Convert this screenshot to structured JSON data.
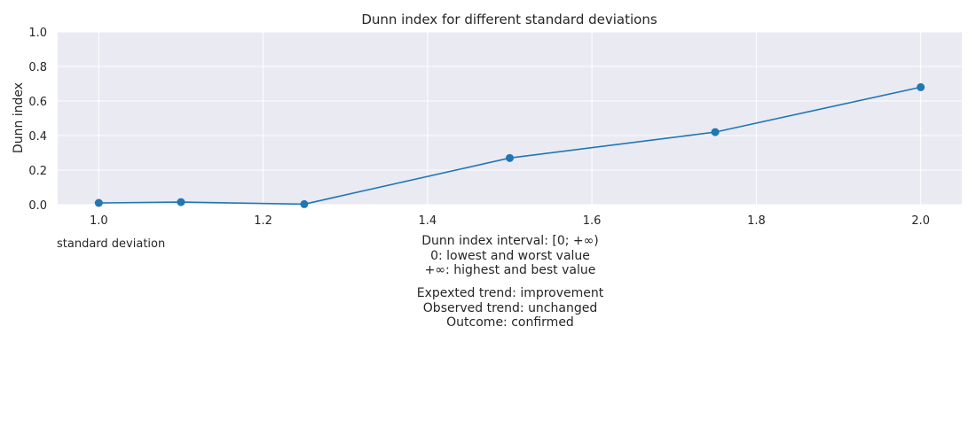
{
  "chart_data": {
    "type": "line",
    "title": "Dunn index for different standard deviations",
    "xlabel": "standard deviation",
    "ylabel": "Dunn index",
    "x": [
      1.0,
      1.1,
      1.25,
      1.5,
      1.75,
      2.0
    ],
    "series": [
      {
        "values": [
          0.01,
          0.015,
          0.003,
          0.27,
          0.42,
          0.68
        ]
      }
    ],
    "xlim": [
      0.95,
      2.05
    ],
    "ylim": [
      0.0,
      1.0
    ],
    "xticks": [
      1.0,
      1.2,
      1.4,
      1.6,
      1.8,
      2.0
    ],
    "xtick_labels": [
      "1.0",
      "1.2",
      "1.4",
      "1.6",
      "1.8",
      "2.0"
    ],
    "yticks": [
      0.0,
      0.2,
      0.4,
      0.6,
      0.8,
      1.0
    ],
    "ytick_labels": [
      "0.0",
      "0.2",
      "0.4",
      "0.6",
      "0.8",
      "1.0"
    ],
    "grid": true,
    "colors": {
      "line": "#1f77b4",
      "plot_background": "#eaeaf2",
      "grid": "#ffffff"
    }
  },
  "notes": {
    "interval": [
      "Dunn index interval: [0; +∞)",
      "0: lowest and worst value",
      "+∞: highest and best value"
    ],
    "trend": [
      "Expexted trend: improvement",
      "Observed trend: unchanged",
      "Outcome: confirmed"
    ]
  }
}
